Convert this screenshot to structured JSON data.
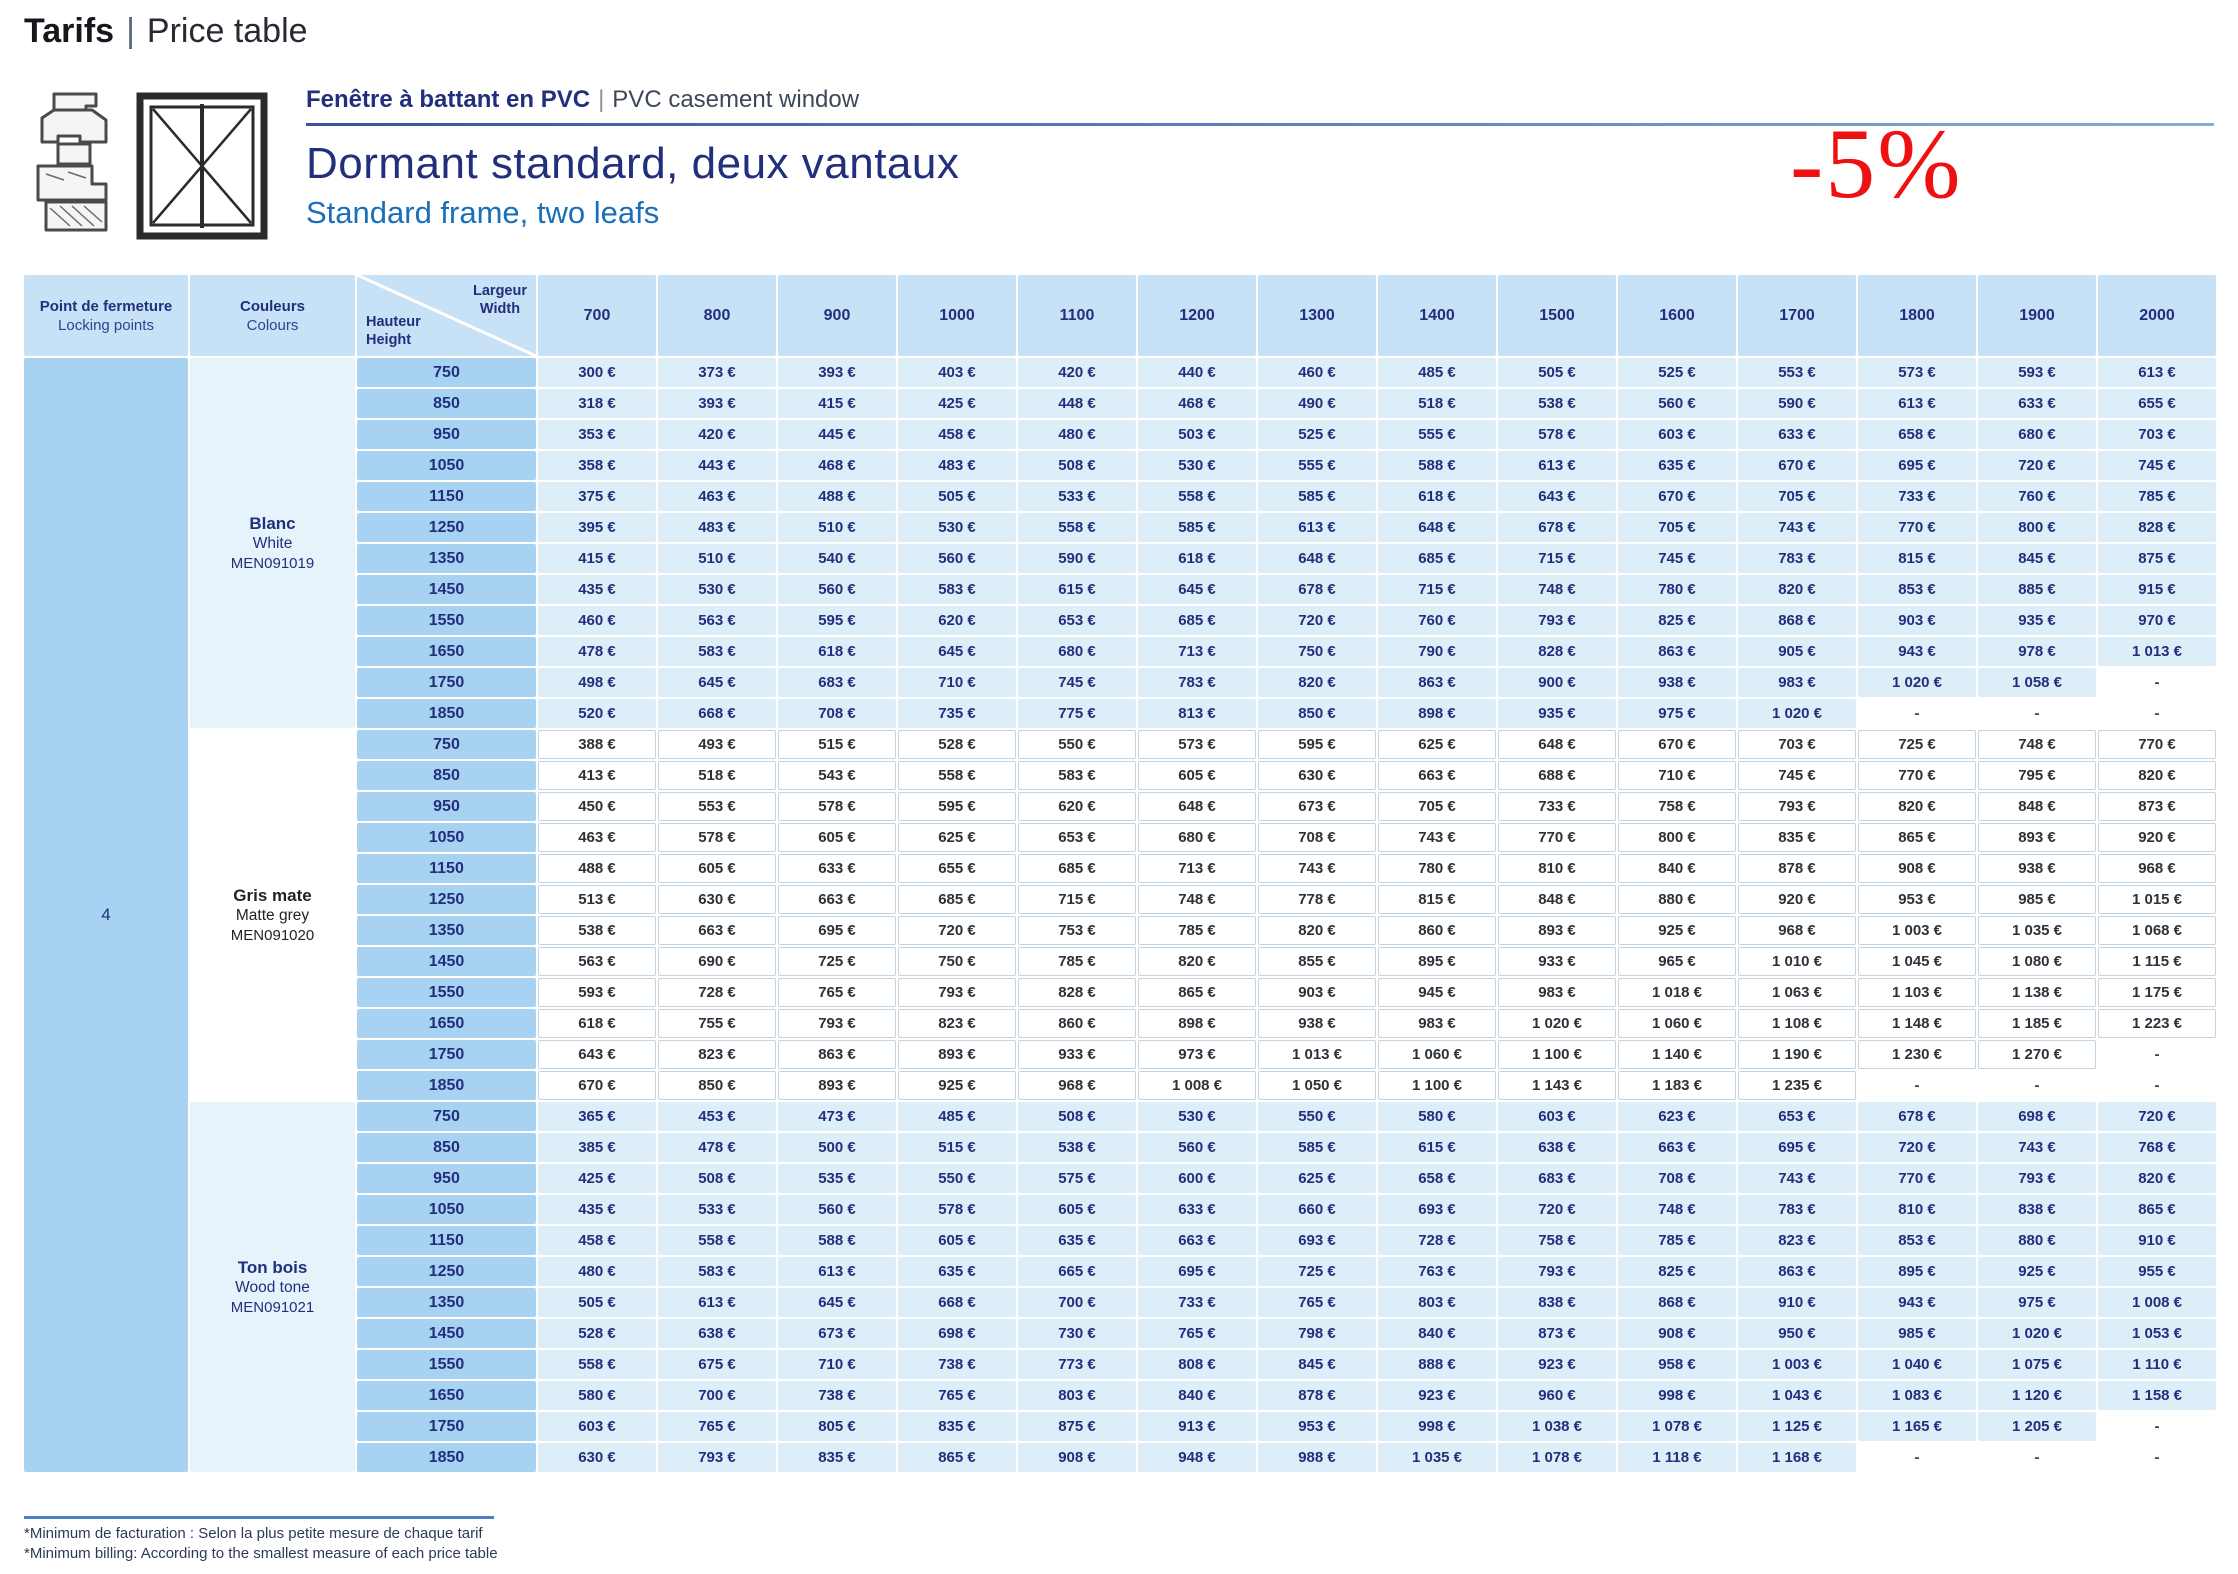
{
  "page_title": {
    "primary": "Tarifs",
    "separator": "|",
    "secondary": "Price table"
  },
  "product": {
    "subtitle_fr": "Fenêtre à battant en PVC",
    "subtitle_sep": "|",
    "subtitle_en": "PVC casement window",
    "title_fr": "Dormant standard, deux vantaux",
    "title_en": "Standard frame, two leafs"
  },
  "promo_badge": "-5%",
  "table": {
    "corner": {
      "locking_fr": "Point de fermeture",
      "locking_en": "Locking points",
      "colours_fr": "Couleurs",
      "colours_en": "Colours",
      "width_fr": "Largeur",
      "width_en": "Width",
      "height_fr": "Hauteur",
      "height_en": "Height"
    },
    "widths": [
      "700",
      "800",
      "900",
      "1000",
      "1100",
      "1200",
      "1300",
      "1400",
      "1500",
      "1600",
      "1700",
      "1800",
      "1900",
      "2000"
    ],
    "heights": [
      "750",
      "850",
      "950",
      "1050",
      "1150",
      "1250",
      "1350",
      "1450",
      "1550",
      "1650",
      "1750",
      "1850"
    ],
    "locking_points": "4",
    "currency": "€",
    "missing": "-",
    "sections": [
      {
        "label_fr": "Blanc",
        "label_en": "White",
        "code": "MEN091019",
        "theme": "blue",
        "prices": [
          [
            300,
            373,
            393,
            403,
            420,
            440,
            460,
            485,
            505,
            525,
            553,
            573,
            593,
            613
          ],
          [
            318,
            393,
            415,
            425,
            448,
            468,
            490,
            518,
            538,
            560,
            590,
            613,
            633,
            655
          ],
          [
            353,
            420,
            445,
            458,
            480,
            503,
            525,
            555,
            578,
            603,
            633,
            658,
            680,
            703
          ],
          [
            358,
            443,
            468,
            483,
            508,
            530,
            555,
            588,
            613,
            635,
            670,
            695,
            720,
            745
          ],
          [
            375,
            463,
            488,
            505,
            533,
            558,
            585,
            618,
            643,
            670,
            705,
            733,
            760,
            785
          ],
          [
            395,
            483,
            510,
            530,
            558,
            585,
            613,
            648,
            678,
            705,
            743,
            770,
            800,
            828
          ],
          [
            415,
            510,
            540,
            560,
            590,
            618,
            648,
            685,
            715,
            745,
            783,
            815,
            845,
            875
          ],
          [
            435,
            530,
            560,
            583,
            615,
            645,
            678,
            715,
            748,
            780,
            820,
            853,
            885,
            915
          ],
          [
            460,
            563,
            595,
            620,
            653,
            685,
            720,
            760,
            793,
            825,
            868,
            903,
            935,
            970
          ],
          [
            478,
            583,
            618,
            645,
            680,
            713,
            750,
            790,
            828,
            863,
            905,
            943,
            978,
            1013
          ],
          [
            498,
            645,
            683,
            710,
            745,
            783,
            820,
            863,
            900,
            938,
            983,
            1020,
            1058,
            null
          ],
          [
            520,
            668,
            708,
            735,
            775,
            813,
            850,
            898,
            935,
            975,
            1020,
            null,
            null,
            null
          ]
        ]
      },
      {
        "label_fr": "Gris mate",
        "label_en": "Matte grey",
        "code": "MEN091020",
        "theme": "white",
        "prices": [
          [
            388,
            493,
            515,
            528,
            550,
            573,
            595,
            625,
            648,
            670,
            703,
            725,
            748,
            770
          ],
          [
            413,
            518,
            543,
            558,
            583,
            605,
            630,
            663,
            688,
            710,
            745,
            770,
            795,
            820
          ],
          [
            450,
            553,
            578,
            595,
            620,
            648,
            673,
            705,
            733,
            758,
            793,
            820,
            848,
            873
          ],
          [
            463,
            578,
            605,
            625,
            653,
            680,
            708,
            743,
            770,
            800,
            835,
            865,
            893,
            920
          ],
          [
            488,
            605,
            633,
            655,
            685,
            713,
            743,
            780,
            810,
            840,
            878,
            908,
            938,
            968
          ],
          [
            513,
            630,
            663,
            685,
            715,
            748,
            778,
            815,
            848,
            880,
            920,
            953,
            985,
            1015
          ],
          [
            538,
            663,
            695,
            720,
            753,
            785,
            820,
            860,
            893,
            925,
            968,
            1003,
            1035,
            1068
          ],
          [
            563,
            690,
            725,
            750,
            785,
            820,
            855,
            895,
            933,
            965,
            1010,
            1045,
            1080,
            1115
          ],
          [
            593,
            728,
            765,
            793,
            828,
            865,
            903,
            945,
            983,
            1018,
            1063,
            1103,
            1138,
            1175
          ],
          [
            618,
            755,
            793,
            823,
            860,
            898,
            938,
            983,
            1020,
            1060,
            1108,
            1148,
            1185,
            1223
          ],
          [
            643,
            823,
            863,
            893,
            933,
            973,
            1013,
            1060,
            1100,
            1140,
            1190,
            1230,
            1270,
            null
          ],
          [
            670,
            850,
            893,
            925,
            968,
            1008,
            1050,
            1100,
            1143,
            1183,
            1235,
            null,
            null,
            null
          ]
        ]
      },
      {
        "label_fr": "Ton bois",
        "label_en": "Wood tone",
        "code": "MEN091021",
        "theme": "blue",
        "prices": [
          [
            365,
            453,
            473,
            485,
            508,
            530,
            550,
            580,
            603,
            623,
            653,
            678,
            698,
            720
          ],
          [
            385,
            478,
            500,
            515,
            538,
            560,
            585,
            615,
            638,
            663,
            695,
            720,
            743,
            768
          ],
          [
            425,
            508,
            535,
            550,
            575,
            600,
            625,
            658,
            683,
            708,
            743,
            770,
            793,
            820
          ],
          [
            435,
            533,
            560,
            578,
            605,
            633,
            660,
            693,
            720,
            748,
            783,
            810,
            838,
            865
          ],
          [
            458,
            558,
            588,
            605,
            635,
            663,
            693,
            728,
            758,
            785,
            823,
            853,
            880,
            910
          ],
          [
            480,
            583,
            613,
            635,
            665,
            695,
            725,
            763,
            793,
            825,
            863,
            895,
            925,
            955
          ],
          [
            505,
            613,
            645,
            668,
            700,
            733,
            765,
            803,
            838,
            868,
            910,
            943,
            975,
            1008
          ],
          [
            528,
            638,
            673,
            698,
            730,
            765,
            798,
            840,
            873,
            908,
            950,
            985,
            1020,
            1053
          ],
          [
            558,
            675,
            710,
            738,
            773,
            808,
            845,
            888,
            923,
            958,
            1003,
            1040,
            1075,
            1110
          ],
          [
            580,
            700,
            738,
            765,
            803,
            840,
            878,
            923,
            960,
            998,
            1043,
            1083,
            1120,
            1158
          ],
          [
            603,
            765,
            805,
            835,
            875,
            913,
            953,
            998,
            1038,
            1078,
            1125,
            1165,
            1205,
            null
          ],
          [
            630,
            793,
            835,
            865,
            908,
            948,
            988,
            1035,
            1078,
            1118,
            1168,
            null,
            null,
            null
          ]
        ]
      }
    ]
  },
  "footnotes": {
    "fr": "*Minimum de facturation : Selon la plus petite mesure de chaque tarif",
    "en": "*Minimum billing: According to the smallest measure of each price table"
  },
  "colors": {
    "navy_text": "#212f7c",
    "blue_accent": "#1a6fb8",
    "promo_red": "#ee1111",
    "header_cell": "#c7e2f6",
    "height_cell": "#a8d2f1",
    "price_cell_blue": "#ddeef9",
    "grid_border": "#c2d3e1",
    "dark_text": "#2e3237"
  }
}
